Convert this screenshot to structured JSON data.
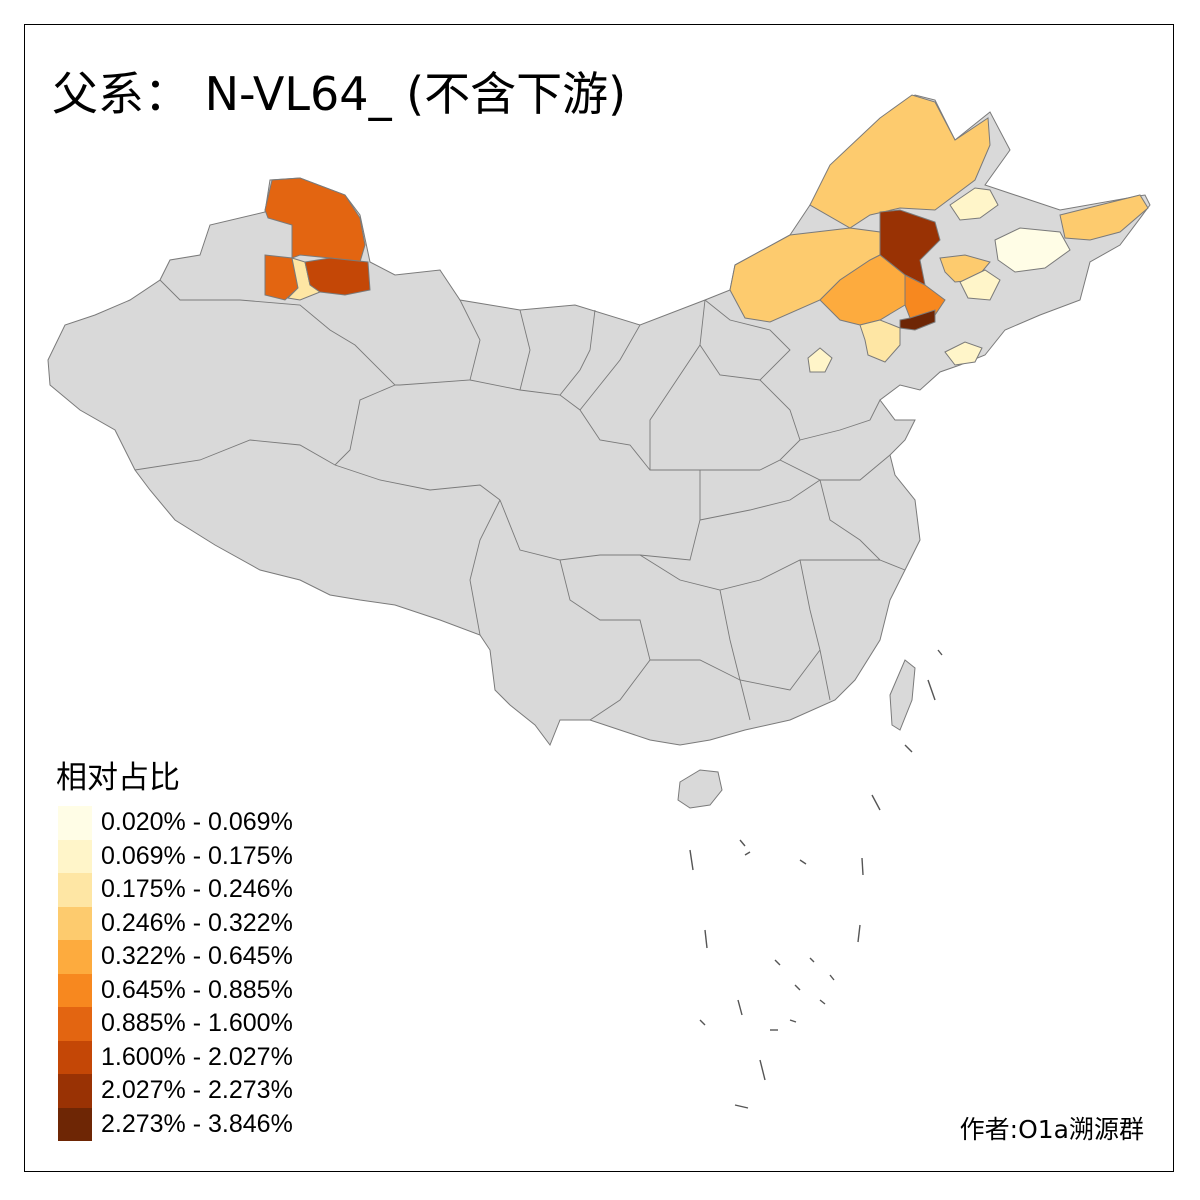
{
  "title": "父系： N-VL64_ (不含下游)",
  "author": "作者:O1a溯源群",
  "legend": {
    "title": "相对占比",
    "items": [
      {
        "label": "0.020% - 0.069%",
        "color": "#fffde6"
      },
      {
        "label": "0.069% - 0.175%",
        "color": "#fff5c9"
      },
      {
        "label": "0.175% - 0.246%",
        "color": "#fee6a4"
      },
      {
        "label": "0.246% - 0.322%",
        "color": "#fdcb6e"
      },
      {
        "label": "0.322% - 0.645%",
        "color": "#fdab3e"
      },
      {
        "label": "0.645% - 0.885%",
        "color": "#f7881f"
      },
      {
        "label": "0.885% - 1.600%",
        "color": "#e36511"
      },
      {
        "label": "1.600% - 2.027%",
        "color": "#c44706"
      },
      {
        "label": "2.027% - 2.273%",
        "color": "#993204"
      },
      {
        "label": "2.273% - 3.846%",
        "color": "#6e2605"
      }
    ]
  },
  "colors": {
    "base": "#d9d9d9",
    "border": "#7a7a7a"
  }
}
